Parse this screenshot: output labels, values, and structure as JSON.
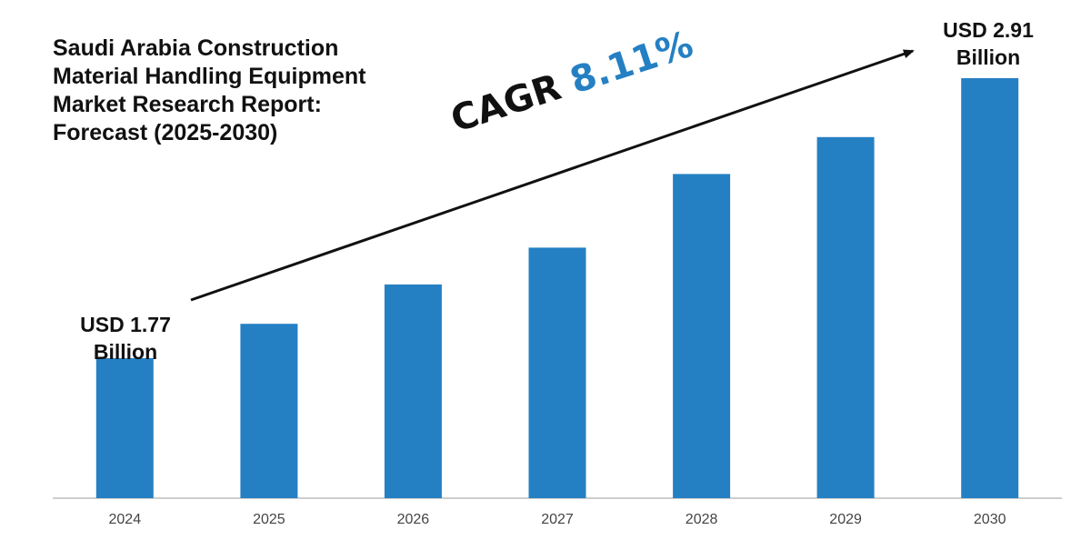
{
  "colors": {
    "bar": "#2580c3",
    "text": "#111111",
    "axis": "#bdbdbd",
    "tick_text": "#444444",
    "arrow": "#111111",
    "cagr_value": "#2580c3"
  },
  "title_lines": [
    "Saudi Arabia Construction",
    "Material Handling Equipment",
    "Market Research Report:",
    "Forecast (2025-2030)"
  ],
  "cagr": {
    "prefix": "CAGR",
    "value": "8.11%"
  },
  "first_label": {
    "line1": "USD 1.77",
    "line2": "Billion"
  },
  "last_label": {
    "line1": "USD 2.91",
    "line2": "Billion"
  },
  "chart_data": {
    "type": "bar",
    "title": "Saudi Arabia Construction Material Handling Equipment Market Research Report: Forecast (2025-2030)",
    "categories": [
      "2024",
      "2025",
      "2026",
      "2027",
      "2028",
      "2029",
      "2030"
    ],
    "values": [
      1.77,
      1.91,
      2.07,
      2.22,
      2.52,
      2.67,
      2.91
    ],
    "unit": "USD Billion",
    "annotation": "CAGR 8.11%",
    "xlabel": "",
    "ylabel": "",
    "ylim": [
      1.2,
      2.91
    ],
    "grid": false,
    "legend": "none"
  }
}
